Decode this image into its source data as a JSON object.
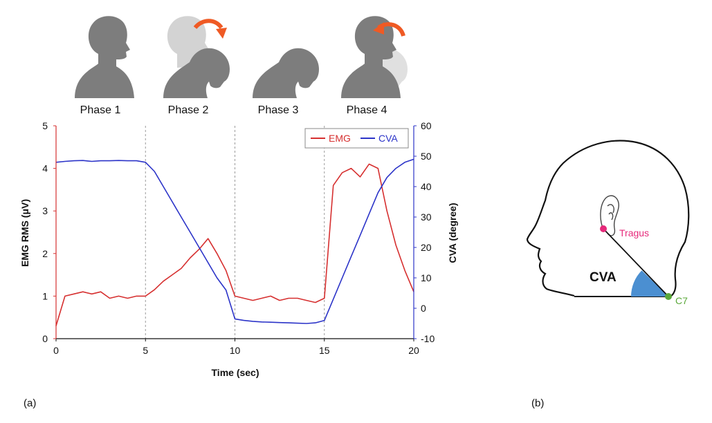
{
  "chart_data": {
    "type": "line",
    "xlabel": "Time (sec)",
    "ylabel": "EMG RMS (μV)",
    "y2label": "CVA (degree)",
    "xlim": [
      0,
      20
    ],
    "ylim": [
      0,
      5
    ],
    "y2lim": [
      -10,
      60
    ],
    "xticks": [
      "0",
      "5",
      "10",
      "15",
      "20"
    ],
    "yticks": [
      "0",
      "1",
      "2",
      "3",
      "4",
      "5"
    ],
    "y2ticks": [
      "-10",
      "0",
      "10",
      "20",
      "30",
      "40",
      "50",
      "60"
    ],
    "phase_boundaries": [
      5,
      10,
      15
    ],
    "phases": [
      "Phase 1",
      "Phase 2",
      "Phase 3",
      "Phase 4"
    ],
    "legend_position": "top-right",
    "series": [
      {
        "name": "EMG",
        "axis": "left",
        "color": "#d62f2f",
        "x": [
          0,
          0.5,
          1,
          1.5,
          2,
          2.5,
          3,
          3.5,
          4,
          4.5,
          5,
          5.5,
          6,
          6.5,
          7,
          7.5,
          8,
          8.5,
          9,
          9.5,
          10,
          10.5,
          11,
          11.5,
          12,
          12.5,
          13,
          13.5,
          14,
          14.5,
          15,
          15.5,
          16,
          16.5,
          17,
          17.5,
          18,
          18.5,
          19,
          19.5,
          20
        ],
        "y": [
          0.3,
          1.0,
          1.05,
          1.1,
          1.05,
          1.1,
          0.95,
          1.0,
          0.95,
          1.0,
          1.0,
          1.15,
          1.35,
          1.5,
          1.65,
          1.9,
          2.1,
          2.35,
          2.0,
          1.6,
          1.0,
          0.95,
          0.9,
          0.95,
          1.0,
          0.9,
          0.95,
          0.95,
          0.9,
          0.85,
          0.95,
          3.6,
          3.9,
          4.0,
          3.8,
          4.1,
          4.0,
          3.0,
          2.2,
          1.6,
          1.1
        ]
      },
      {
        "name": "CVA",
        "axis": "right",
        "color": "#2b33c8",
        "x": [
          0,
          0.5,
          1,
          1.5,
          2,
          2.5,
          3,
          3.5,
          4,
          4.5,
          5,
          5.5,
          6,
          6.5,
          7,
          7.5,
          8,
          8.5,
          9,
          9.5,
          10,
          10.5,
          11,
          11.5,
          12,
          12.5,
          13,
          13.5,
          14,
          14.5,
          15,
          15.5,
          16,
          16.5,
          17,
          17.5,
          18,
          18.5,
          19,
          19.5,
          20
        ],
        "y": [
          48,
          48.3,
          48.5,
          48.6,
          48.3,
          48.5,
          48.5,
          48.6,
          48.5,
          48.5,
          48,
          45,
          40,
          35,
          30,
          25,
          20,
          15,
          10,
          6,
          -3.5,
          -4,
          -4.3,
          -4.5,
          -4.6,
          -4.7,
          -4.8,
          -4.9,
          -5,
          -4.8,
          -4,
          3,
          10,
          17,
          24,
          31,
          38,
          43,
          46,
          48,
          49
        ]
      }
    ]
  },
  "diagram": {
    "angle_label": "CVA",
    "point1_label": "Tragus",
    "point2_label": "C7",
    "point1_color": "#e6297a",
    "point2_color": "#5aa83a",
    "angle_color": "#4b8fd1"
  },
  "panel_labels": {
    "a": "(a)",
    "b": "(b)"
  },
  "colors": {
    "emg": "#d62f2f",
    "cva": "#2b33c8",
    "arrow": "#ef5a24",
    "head": "#7d7d7d",
    "ghost": "#d3d3d3"
  }
}
